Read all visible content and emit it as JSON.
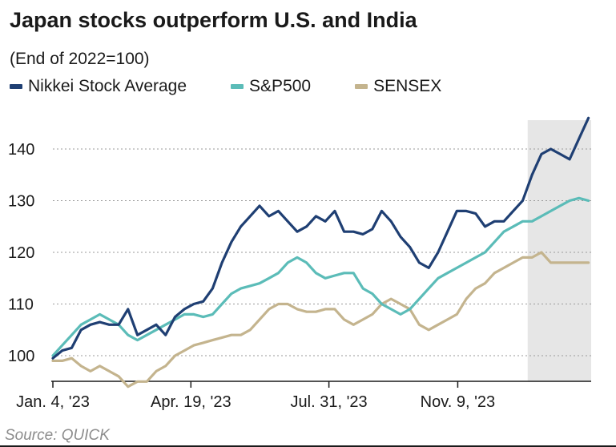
{
  "chart_data": {
    "type": "line",
    "title": "Japan stocks outperform U.S. and India",
    "subtitle": "(End of 2022=100)",
    "ylim": [
      97,
      147
    ],
    "yticks": [
      100,
      110,
      120,
      130,
      140
    ],
    "xticks": [
      {
        "label": "Jan. 4, '23",
        "week": 0
      },
      {
        "label": "Apr. 19, '23",
        "week": 15
      },
      {
        "label": "Jul. 31, '23",
        "week": 30
      },
      {
        "label": "Nov. 9, '23",
        "week": 44
      }
    ],
    "x_range_weeks": [
      0,
      58.5
    ],
    "highlight_region_weeks": [
      51.6,
      58.5
    ],
    "source": "Source: QUICK",
    "series": [
      {
        "name": "Nikkei Stock Average",
        "color": "#1f3f73",
        "values": [
          99.5,
          101,
          101.5,
          105,
          106,
          106.5,
          106,
          106,
          109,
          104,
          105,
          106,
          104,
          107.5,
          109,
          110,
          110.5,
          113,
          118,
          122,
          125,
          127,
          129,
          127,
          128,
          126,
          124,
          125,
          127,
          126,
          128,
          124,
          124,
          123.5,
          124.5,
          128,
          126,
          123,
          121,
          118,
          117,
          120,
          124,
          128,
          128,
          127.5,
          125,
          126,
          126,
          128,
          130,
          135,
          139,
          140,
          139,
          138,
          142,
          146
        ]
      },
      {
        "name": "S&P500",
        "color": "#5bbcb8",
        "values": [
          100,
          102,
          104,
          106,
          107,
          108,
          107,
          106,
          104,
          103,
          104,
          105,
          106,
          107,
          108,
          108,
          107.5,
          108,
          110,
          112,
          113,
          113.5,
          114,
          115,
          116,
          118,
          119,
          118,
          116,
          115,
          115.5,
          116,
          116,
          113,
          112,
          110,
          109,
          108,
          109,
          111,
          113,
          115,
          116,
          117,
          118,
          119,
          120,
          122,
          124,
          125,
          126,
          126,
          127,
          128,
          129,
          130,
          130.5,
          130
        ]
      },
      {
        "name": "SENSEX",
        "color": "#c4b48e",
        "values": [
          99,
          99,
          99.5,
          98,
          97,
          98,
          97,
          96,
          94,
          95,
          95,
          97,
          98,
          100,
          101,
          102,
          102.5,
          103,
          103.5,
          104,
          104,
          105,
          107,
          109,
          110,
          110,
          109,
          108.5,
          108.5,
          109,
          109,
          107,
          106,
          107,
          108,
          110,
          111,
          110,
          109,
          106,
          105,
          106,
          107,
          108,
          111,
          113,
          114,
          116,
          117,
          118,
          119,
          119,
          120,
          118,
          118,
          118,
          118,
          118
        ]
      }
    ]
  }
}
